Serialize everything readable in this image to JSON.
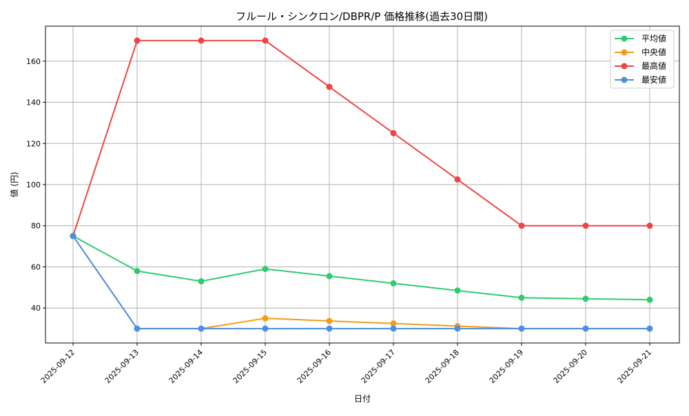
{
  "chart_data": {
    "type": "line",
    "title": "フルール・シンクロン/DBPR/P 価格推移(過去30日間)",
    "xlabel": "日付",
    "ylabel": "値 (円)",
    "categories": [
      "2025-09-12",
      "2025-09-13",
      "2025-09-14",
      "2025-09-15",
      "2025-09-16",
      "2025-09-17",
      "2025-09-18",
      "2025-09-19",
      "2025-09-20",
      "2025-09-21"
    ],
    "ylim": [
      23,
      177
    ],
    "yticks": [
      40,
      60,
      80,
      100,
      120,
      140,
      160
    ],
    "grid": true,
    "legend_position": "top-right",
    "series": [
      {
        "name": "平均値",
        "color": "#2ecc71",
        "values": [
          75,
          58,
          53,
          59,
          55.5,
          52,
          48.5,
          45,
          44.5,
          44
        ]
      },
      {
        "name": "中央値",
        "color": "#f39c12",
        "values": [
          75,
          30,
          30,
          35,
          33.7,
          32.5,
          31.2,
          30,
          30,
          30
        ]
      },
      {
        "name": "最高値",
        "color": "#ef4444",
        "values": [
          75,
          170,
          170,
          170,
          147.5,
          125,
          102.5,
          80,
          80,
          80
        ]
      },
      {
        "name": "最安値",
        "color": "#4a90e2",
        "values": [
          75,
          30,
          30,
          30,
          30,
          30,
          30,
          30,
          30,
          30
        ]
      }
    ]
  }
}
